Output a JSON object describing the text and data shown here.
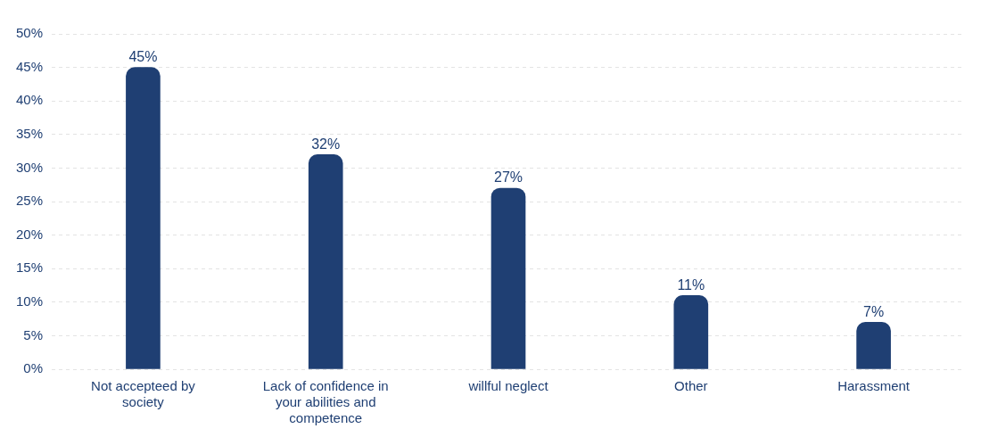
{
  "chart_data": {
    "type": "bar",
    "categories": [
      "Not accepteed by society",
      "Lack of confidence in your abilities and competence",
      "willful neglect",
      "Other",
      "Harassment"
    ],
    "values": [
      45,
      32,
      27,
      11,
      7
    ],
    "color": "#1f3f73",
    "ylim": [
      0,
      50
    ],
    "yticks": [
      {
        "value": 0,
        "label": "0%"
      },
      {
        "value": 5,
        "label": "5%"
      },
      {
        "value": 10,
        "label": "10%"
      },
      {
        "value": 15,
        "label": "15%"
      },
      {
        "value": 20,
        "label": "20%"
      },
      {
        "value": 25,
        "label": "25%"
      },
      {
        "value": 30,
        "label": "30%"
      },
      {
        "value": 35,
        "label": "35%"
      },
      {
        "value": 40,
        "label": "40%"
      },
      {
        "value": 45,
        "label": "45%"
      },
      {
        "value": 50,
        "label": "50%"
      }
    ],
    "value_labels": [
      "45%",
      "32%",
      "27%",
      "11%",
      "7%"
    ],
    "grid": "y",
    "legend": false
  }
}
